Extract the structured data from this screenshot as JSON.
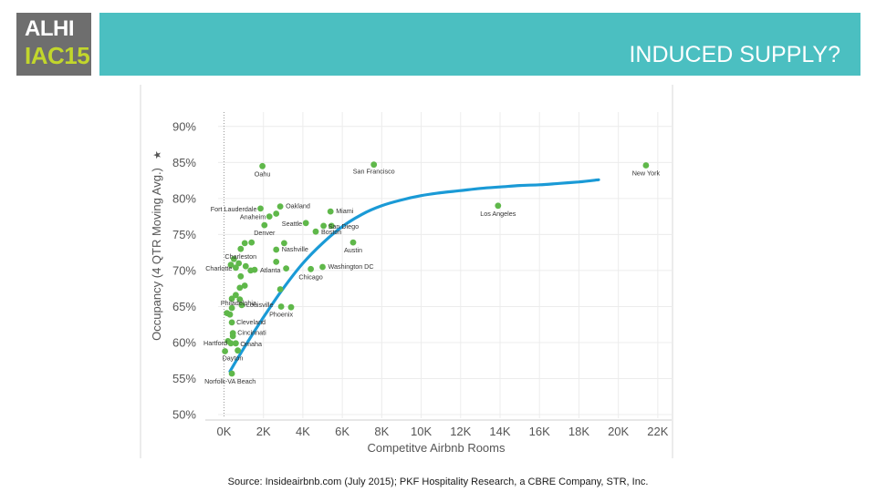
{
  "logo": {
    "line1": "ALHI",
    "line2": "IAC15"
  },
  "header": {
    "title": "INDUCED SUPPLY?"
  },
  "source": "Source: Insideairbnb.com (July 2015); PKF Hospitality Research, a CBRE Company, STR, Inc.",
  "colors": {
    "banner": "#4bbfc1",
    "logo_bg": "#6e6e6e",
    "logo_accent": "#c2d62c",
    "points": "#5fb84a",
    "trend": "#1a9ad6"
  },
  "chart_data": {
    "type": "scatter",
    "xlabel": "Competitve Airbnb Rooms",
    "ylabel": "Occupancy (4 QTR Moving Avg.)",
    "xlim": [
      -300,
      22700
    ],
    "ylim": [
      49.5,
      92
    ],
    "x_ticks": [
      {
        "v": 0,
        "label": "0K"
      },
      {
        "v": 2000,
        "label": "2K"
      },
      {
        "v": 4000,
        "label": "4K"
      },
      {
        "v": 6000,
        "label": "6K"
      },
      {
        "v": 8000,
        "label": "8K"
      },
      {
        "v": 10000,
        "label": "10K"
      },
      {
        "v": 12000,
        "label": "12K"
      },
      {
        "v": 14000,
        "label": "14K"
      },
      {
        "v": 16000,
        "label": "16K"
      },
      {
        "v": 18000,
        "label": "18K"
      },
      {
        "v": 20000,
        "label": "20K"
      },
      {
        "v": 22000,
        "label": "22K"
      }
    ],
    "y_ticks": [
      {
        "v": 50,
        "label": "50%"
      },
      {
        "v": 55,
        "label": "55%"
      },
      {
        "v": 60,
        "label": "60%"
      },
      {
        "v": 65,
        "label": "65%"
      },
      {
        "v": 70,
        "label": "70%"
      },
      {
        "v": 75,
        "label": "75%"
      },
      {
        "v": 80,
        "label": "80%"
      },
      {
        "v": 85,
        "label": "85%"
      },
      {
        "v": 90,
        "label": "90%"
      }
    ],
    "grid": true,
    "points": [
      {
        "label": "Oahu",
        "x": 1950,
        "y": 84.5
      },
      {
        "label": "San Francisco",
        "x": 7600,
        "y": 84.7
      },
      {
        "label": "New York",
        "x": 21400,
        "y": 84.6
      },
      {
        "label": "Fort Lauderdale",
        "x": 1850,
        "y": 78.6
      },
      {
        "label": "Oakland",
        "x": 2850,
        "y": 78.9
      },
      {
        "label": "Miami",
        "x": 5400,
        "y": 78.2
      },
      {
        "label": "Los Angeles",
        "x": 13900,
        "y": 79.0
      },
      {
        "label": "Anaheim",
        "x": 2300,
        "y": 77.5
      },
      {
        "label": "",
        "x": 2650,
        "y": 77.9
      },
      {
        "label": "Seattle",
        "x": 4150,
        "y": 76.6
      },
      {
        "label": "San Diego",
        "x": 5050,
        "y": 76.2
      },
      {
        "label": "",
        "x": 5450,
        "y": 76.2
      },
      {
        "label": "Denver",
        "x": 2050,
        "y": 76.3
      },
      {
        "label": "Boston",
        "x": 4650,
        "y": 75.4
      },
      {
        "label": "",
        "x": 1400,
        "y": 73.9
      },
      {
        "label": "",
        "x": 1050,
        "y": 73.8
      },
      {
        "label": "",
        "x": 3050,
        "y": 73.8
      },
      {
        "label": "Austin",
        "x": 6550,
        "y": 73.9
      },
      {
        "label": "Charleston",
        "x": 850,
        "y": 73.0
      },
      {
        "label": "Nashville",
        "x": 2650,
        "y": 72.9
      },
      {
        "label": "",
        "x": 500,
        "y": 71.6
      },
      {
        "label": "",
        "x": 750,
        "y": 71.0
      },
      {
        "label": "",
        "x": 350,
        "y": 70.8
      },
      {
        "label": "",
        "x": 2650,
        "y": 71.2
      },
      {
        "label": "Charlotte",
        "x": 600,
        "y": 70.4
      },
      {
        "label": "Atlanta",
        "x": 1550,
        "y": 70.1
      },
      {
        "label": "",
        "x": 1100,
        "y": 70.6
      },
      {
        "label": "",
        "x": 1350,
        "y": 70.0
      },
      {
        "label": "",
        "x": 3150,
        "y": 70.3
      },
      {
        "label": "Washington DC",
        "x": 5000,
        "y": 70.5
      },
      {
        "label": "Chicago",
        "x": 4400,
        "y": 70.2
      },
      {
        "label": "",
        "x": 850,
        "y": 69.2
      },
      {
        "label": "",
        "x": 1050,
        "y": 67.9
      },
      {
        "label": "",
        "x": 800,
        "y": 67.6
      },
      {
        "label": "",
        "x": 2850,
        "y": 67.4
      },
      {
        "label": "Philadelphia",
        "x": 600,
        "y": 66.6
      },
      {
        "label": "",
        "x": 400,
        "y": 66.1
      },
      {
        "label": "",
        "x": 800,
        "y": 66.0
      },
      {
        "label": "Louisville",
        "x": 900,
        "y": 65.2
      },
      {
        "label": "",
        "x": 400,
        "y": 64.8
      },
      {
        "label": "",
        "x": 150,
        "y": 64.1
      },
      {
        "label": "",
        "x": 300,
        "y": 63.9
      },
      {
        "label": "Phoenix",
        "x": 2900,
        "y": 65.0
      },
      {
        "label": "",
        "x": 3400,
        "y": 64.9
      },
      {
        "label": "Cleveland",
        "x": 400,
        "y": 62.8
      },
      {
        "label": "Cincinnati",
        "x": 450,
        "y": 61.3
      },
      {
        "label": "",
        "x": 450,
        "y": 60.9
      },
      {
        "label": "Hartford",
        "x": 350,
        "y": 59.9
      },
      {
        "label": "",
        "x": 200,
        "y": 60.2
      },
      {
        "label": "Omaha",
        "x": 600,
        "y": 59.9
      },
      {
        "label": "Dayton",
        "x": 50,
        "y": 58.8
      },
      {
        "label": "",
        "x": 700,
        "y": 58.9
      },
      {
        "label": "Norfolk-VA Beach",
        "x": 400,
        "y": 55.7
      }
    ],
    "trend": {
      "type": "line",
      "x": [
        300,
        1000,
        2000,
        3000,
        4000,
        5000,
        6000,
        7000,
        8000,
        9000,
        10000,
        11000,
        12000,
        13000,
        14000,
        15000,
        16000,
        17000,
        18000,
        19000
      ],
      "y": [
        56.0,
        59.2,
        63.5,
        67.5,
        71.0,
        73.8,
        76.1,
        77.8,
        79.0,
        79.8,
        80.4,
        80.8,
        81.1,
        81.4,
        81.6,
        81.8,
        81.9,
        82.1,
        82.3,
        82.6
      ]
    }
  }
}
